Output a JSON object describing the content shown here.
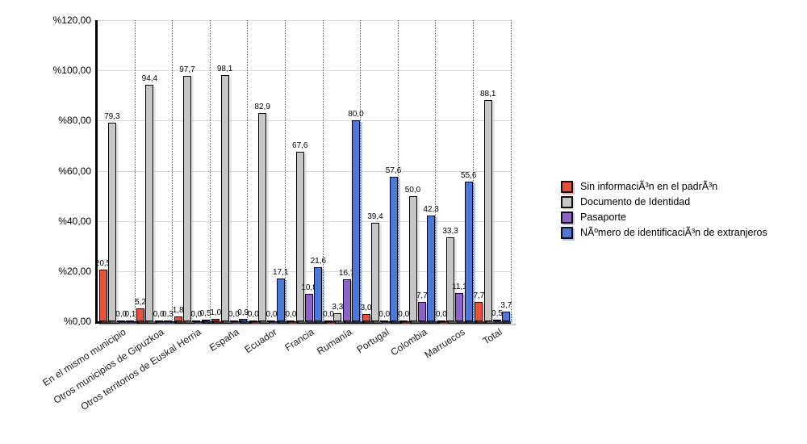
{
  "chart_data": {
    "type": "bar",
    "title": "",
    "xlabel": "",
    "ylabel": "",
    "ylim": [
      0,
      120
    ],
    "y_step": 20,
    "y_ticks": [
      "%0,00",
      "%20,00",
      "%40,00",
      "%60,00",
      "%80,00",
      "%100,00",
      "%120,00"
    ],
    "grid": {
      "horizontal": true,
      "vertical_dotted": true
    },
    "legend_position": "right",
    "decimal_separator": ",",
    "categories": [
      "En el mismo municipio",
      "Otros municipios de Gipuzkoa",
      "Otros territorios de Euskal Herria",
      "España",
      "Ecuador",
      "Francia",
      "Rumanía",
      "Portugal",
      "Colombia",
      "Marruecos",
      "Total"
    ],
    "series": [
      {
        "name": "Sin informaciÃ³n en el padrÃ³n",
        "color": "#e8503c",
        "values": [
          20.5,
          5.2,
          1.8,
          1.0,
          0.0,
          0.0,
          0.0,
          3.0,
          0.0,
          0.0,
          7.7
        ]
      },
      {
        "name": "Documento de Identidad",
        "color": "#c6c6c6",
        "values": [
          79.3,
          94.4,
          97.7,
          98.1,
          82.9,
          67.6,
          3.3,
          39.4,
          50.0,
          33.3,
          88.1
        ]
      },
      {
        "name": "Pasaporte",
        "color": "#8f62c8",
        "values": [
          0.0,
          0.0,
          0.0,
          0.0,
          0.0,
          10.8,
          16.7,
          0.0,
          7.7,
          11.1,
          0.5
        ]
      },
      {
        "name": "NÃºmero de identificaciÃ³n de extranjeros",
        "color": "#4c78d8",
        "values": [
          0.1,
          0.3,
          0.5,
          0.9,
          17.1,
          21.6,
          80.0,
          57.6,
          42.3,
          55.6,
          3.7
        ]
      }
    ]
  }
}
